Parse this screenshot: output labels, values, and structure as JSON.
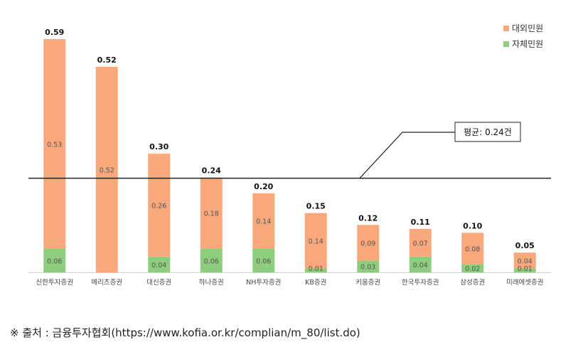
{
  "chart_data": {
    "type": "bar",
    "stacked": true,
    "categories": [
      "신한투자증권",
      "메리츠증권",
      "대신증권",
      "하나증권",
      "NH투자증권",
      "KB증권",
      "키움증권",
      "한국투자증권",
      "삼성증권",
      "미래에셋증권"
    ],
    "series": [
      {
        "name": "자체민원",
        "color": "#8fcd7e",
        "values": [
          0.06,
          0.0,
          0.04,
          0.06,
          0.06,
          0.01,
          0.03,
          0.04,
          0.02,
          0.01
        ]
      },
      {
        "name": "대외민원",
        "color": "#f9a87b",
        "values": [
          0.53,
          0.52,
          0.26,
          0.18,
          0.14,
          0.14,
          0.09,
          0.07,
          0.08,
          0.04
        ]
      }
    ],
    "totals": [
      "0.59",
      "0.52",
      "0.30",
      "0.24",
      "0.20",
      "0.15",
      "0.12",
      "0.11",
      "0.10",
      "0.05"
    ],
    "segment_labels": {
      "자체민원": [
        "0.06",
        "",
        "0.04",
        "0.06",
        "0.06",
        "0.01",
        "0.03",
        "0.04",
        "0.02",
        "0.01"
      ],
      "대외민원": [
        "0.53",
        "0.52",
        "0.26",
        "0.18",
        "0.14",
        "0.14",
        "0.09",
        "0.07",
        "0.08",
        "0.04"
      ]
    },
    "legend": [
      "대외민원",
      "자체민원"
    ],
    "legend_position": "top-right",
    "average": {
      "value": 0.24,
      "label": "평균: 0.24건"
    },
    "ylim": [
      0,
      0.59
    ],
    "grid": false,
    "source": "※ 출처 : 금융투자협회(https://www.kofia.or.kr/complian/m_80/list.do)"
  }
}
